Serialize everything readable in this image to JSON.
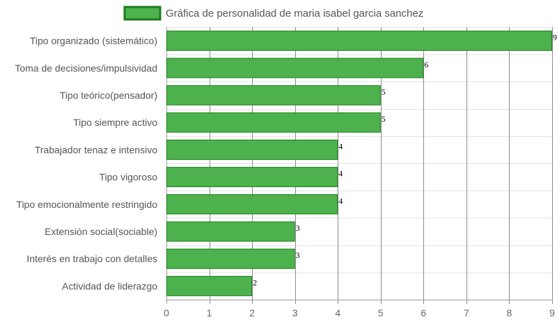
{
  "chart_data": {
    "type": "bar",
    "orientation": "horizontal",
    "title": "",
    "xlabel": "",
    "ylabel": "",
    "categories": [
      "Tipo organizado (sistemático)",
      "Toma de decisiones/impulsividad",
      "Tipo teórico(pensador)",
      "Tipo siempre activo",
      "Trabajador tenaz e intensivo",
      "Tipo vigoroso",
      "Tipo emocionalmente restringido",
      "Extensión social(sociable)",
      "Interés en trabajo con detalles",
      "Actividad de liderazgo"
    ],
    "series": [
      {
        "name": "Gráfica de personalidad de maria isabel garcia sanchez",
        "values": [
          9,
          6,
          5,
          5,
          4,
          4,
          4,
          3,
          3,
          2
        ]
      }
    ],
    "xlim": [
      0,
      9
    ],
    "x_ticks": [
      "0",
      "1",
      "2",
      "3",
      "4",
      "5",
      "6",
      "7",
      "8",
      "9"
    ],
    "grid": true,
    "legend": "top-center",
    "bar_color": "#4db24d",
    "bar_border_color": "#1b7d1b",
    "data_labels": true
  }
}
